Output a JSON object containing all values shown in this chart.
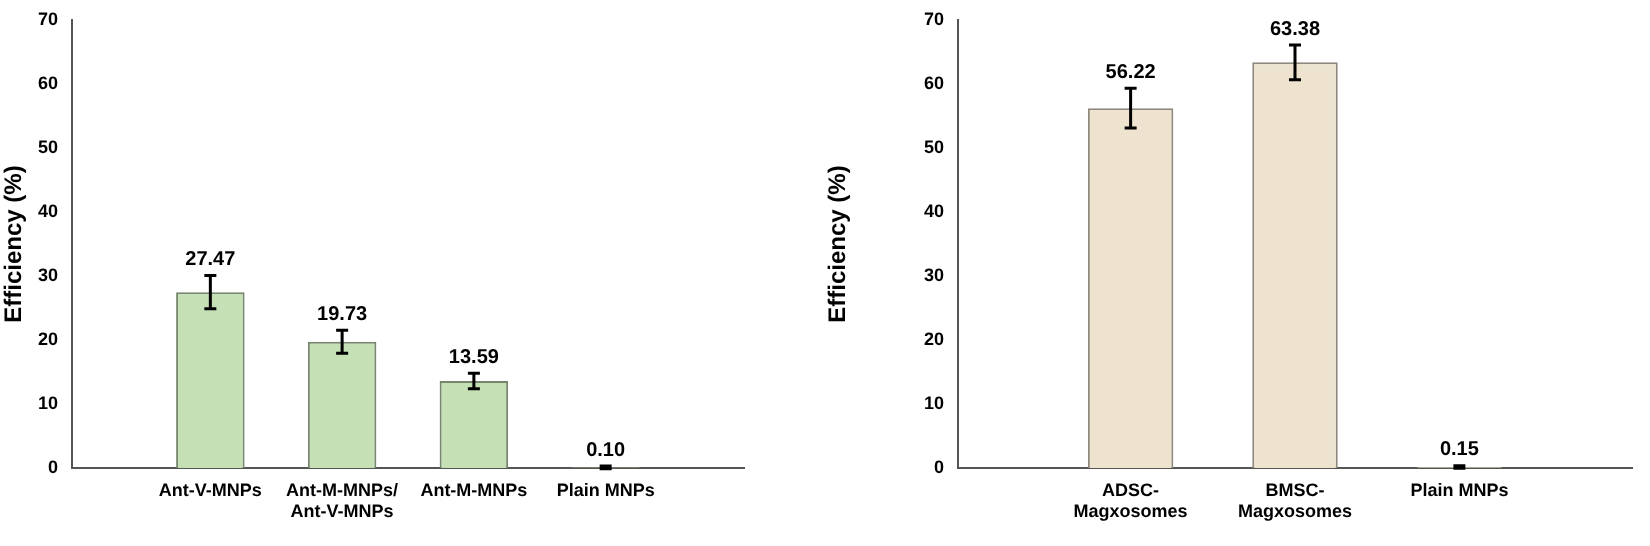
{
  "chart_data": [
    {
      "type": "bar",
      "ylabel": "Efficiency (%)",
      "categories": [
        "Ant-V-MNPs",
        "Ant-M-MNPs/\nAnt-V-MNPs",
        "Ant-M-MNPs",
        "Plain MNPs"
      ],
      "values": [
        27.47,
        19.73,
        13.59,
        0.1
      ],
      "errors": [
        2.6,
        1.8,
        1.2,
        0.2
      ],
      "value_labels": [
        "27.47",
        "19.73",
        "13.59",
        "0.10"
      ],
      "color": "#c5e0b4",
      "ylim": [
        0,
        70
      ],
      "yticks": [
        0,
        10,
        20,
        30,
        40,
        50,
        60,
        70
      ],
      "grid": false,
      "legend": false
    },
    {
      "type": "bar",
      "ylabel": "Efficiency (%)",
      "categories": [
        "ADSC-\nMagxosomes",
        "BMSC-\nMagxosomes",
        "Plain MNPs"
      ],
      "values": [
        56.22,
        63.38,
        0.15
      ],
      "errors": [
        3.1,
        2.7,
        0.2
      ],
      "value_labels": [
        "56.22",
        "63.38",
        "0.15"
      ],
      "color": "#ede3cf",
      "ylim": [
        0,
        70
      ],
      "yticks": [
        0,
        10,
        20,
        30,
        40,
        50,
        60,
        70
      ],
      "grid": false,
      "legend": false
    }
  ]
}
